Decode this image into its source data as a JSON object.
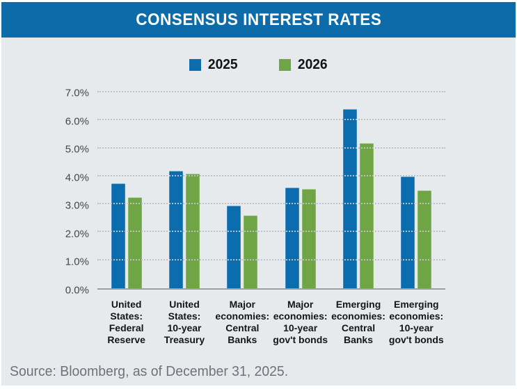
{
  "header": {
    "title": "CONSENSUS INTEREST RATES"
  },
  "colors": {
    "header_bar": "#0c6ba8",
    "series_2025": "#0b6cae",
    "series_2026": "#6fa544",
    "chart_background": "#e6eaec",
    "gridline": "#bbc1c5"
  },
  "chart_data": {
    "type": "bar",
    "title": "CONSENSUS INTEREST RATES",
    "categories": [
      "United States: Federal Reserve",
      "United States: 10-year Treasury",
      "Major economies: Central Banks",
      "Major economies: 10-year gov't bonds",
      "Emerging economies: Central Banks",
      "Emerging economies: 10-year gov't bonds"
    ],
    "category_lines": [
      [
        "United",
        "States:",
        "Federal",
        "Reserve"
      ],
      [
        "United",
        "States:",
        "10-year",
        "Treasury"
      ],
      [
        "Major",
        "economies:",
        "Central",
        "Banks"
      ],
      [
        "Major",
        "economies:",
        "10-year",
        "gov't bonds"
      ],
      [
        "Emerging",
        "economies:",
        "Central",
        "Banks"
      ],
      [
        "Emerging",
        "economies:",
        "10-year",
        "gov't bonds"
      ]
    ],
    "series": [
      {
        "name": "2025",
        "color": "#0b6cae",
        "values": [
          3.75,
          4.2,
          2.95,
          3.6,
          6.4,
          4.0
        ]
      },
      {
        "name": "2026",
        "color": "#6fa544",
        "values": [
          3.25,
          4.1,
          2.6,
          3.55,
          5.2,
          3.5
        ]
      }
    ],
    "xlabel": "",
    "ylabel": "",
    "ylim": [
      0,
      7
    ],
    "yticks": [
      {
        "value": 0,
        "label": "0.0%"
      },
      {
        "value": 1,
        "label": "1.0%"
      },
      {
        "value": 2,
        "label": "2.0%"
      },
      {
        "value": 3,
        "label": "3.0%"
      },
      {
        "value": 4,
        "label": "4.0%"
      },
      {
        "value": 5,
        "label": "5.0%"
      },
      {
        "value": 6,
        "label": "6.0%"
      },
      {
        "value": 7,
        "label": "7.0%"
      }
    ],
    "grid": "horizontal-dotted",
    "legend_position": "top-center"
  },
  "legend": {
    "items": [
      {
        "label": "2025",
        "color": "#0b6cae"
      },
      {
        "label": "2026",
        "color": "#6fa544"
      }
    ]
  },
  "footer": {
    "source": "Source: Bloomberg, as of December 31, 2025."
  }
}
